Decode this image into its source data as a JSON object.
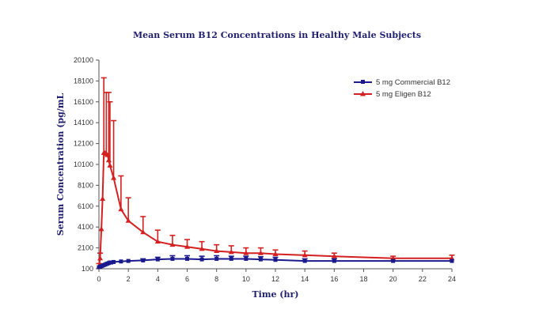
{
  "chart_data": {
    "type": "line",
    "title": "Mean Serum B12 Concentrations in Healthy Male Subjects",
    "xlabel": "Time (hr)",
    "ylabel": "Serum Concentration (pg/mL",
    "xlim": [
      0,
      24
    ],
    "ylim": [
      100,
      20100
    ],
    "x_ticks": [
      "0",
      "2",
      "4",
      "6",
      "8",
      "10",
      "12",
      "14",
      "16",
      "18",
      "20",
      "22",
      "24"
    ],
    "y_ticks": [
      "100",
      "2100",
      "4100",
      "6100",
      "8100",
      "10100",
      "12100",
      "14100",
      "16100",
      "18100",
      "20100"
    ],
    "legend_position": "top-right",
    "grid": false,
    "series": [
      {
        "name": "5 mg Commercial B12",
        "color": "#1a1a8c",
        "marker": "square",
        "x": [
          0,
          0.083,
          0.167,
          0.25,
          0.333,
          0.417,
          0.5,
          0.583,
          0.667,
          0.75,
          0.833,
          1,
          1.5,
          2,
          3,
          4,
          5,
          6,
          7,
          8,
          9,
          10,
          11,
          12,
          14,
          16,
          20,
          24
        ],
        "y": [
          250,
          300,
          350,
          400,
          450,
          500,
          550,
          600,
          650,
          700,
          700,
          750,
          800,
          850,
          900,
          1000,
          1050,
          1050,
          1000,
          1050,
          1050,
          1050,
          1000,
          950,
          850,
          850,
          850,
          850
        ],
        "error": [
          0,
          0,
          0,
          0,
          0,
          0,
          0,
          0,
          0,
          0,
          0,
          0,
          0,
          0,
          150,
          200,
          300,
          300,
          300,
          300,
          250,
          250,
          250,
          250,
          200,
          200,
          0,
          0
        ]
      },
      {
        "name": "5 mg Eligen B12",
        "color": "#d42020",
        "marker": "triangle",
        "x": [
          0,
          0.083,
          0.167,
          0.25,
          0.333,
          0.417,
          0.5,
          0.583,
          0.667,
          0.75,
          1,
          1.5,
          2,
          3,
          4,
          5,
          6,
          7,
          8,
          9,
          10,
          11,
          12,
          14,
          16,
          20,
          24
        ],
        "y": [
          300,
          1100,
          3900,
          6800,
          11200,
          11200,
          11100,
          11000,
          10500,
          10000,
          8800,
          5800,
          4700,
          3600,
          2700,
          2400,
          2200,
          2000,
          1800,
          1700,
          1600,
          1600,
          1500,
          1400,
          1300,
          1100,
          1100
        ],
        "error": [
          300,
          500,
          0,
          0,
          7200,
          0,
          5900,
          0,
          6500,
          6100,
          5500,
          3200,
          2200,
          1500,
          1100,
          900,
          700,
          700,
          600,
          600,
          500,
          500,
          400,
          400,
          300,
          200,
          300
        ]
      }
    ]
  }
}
